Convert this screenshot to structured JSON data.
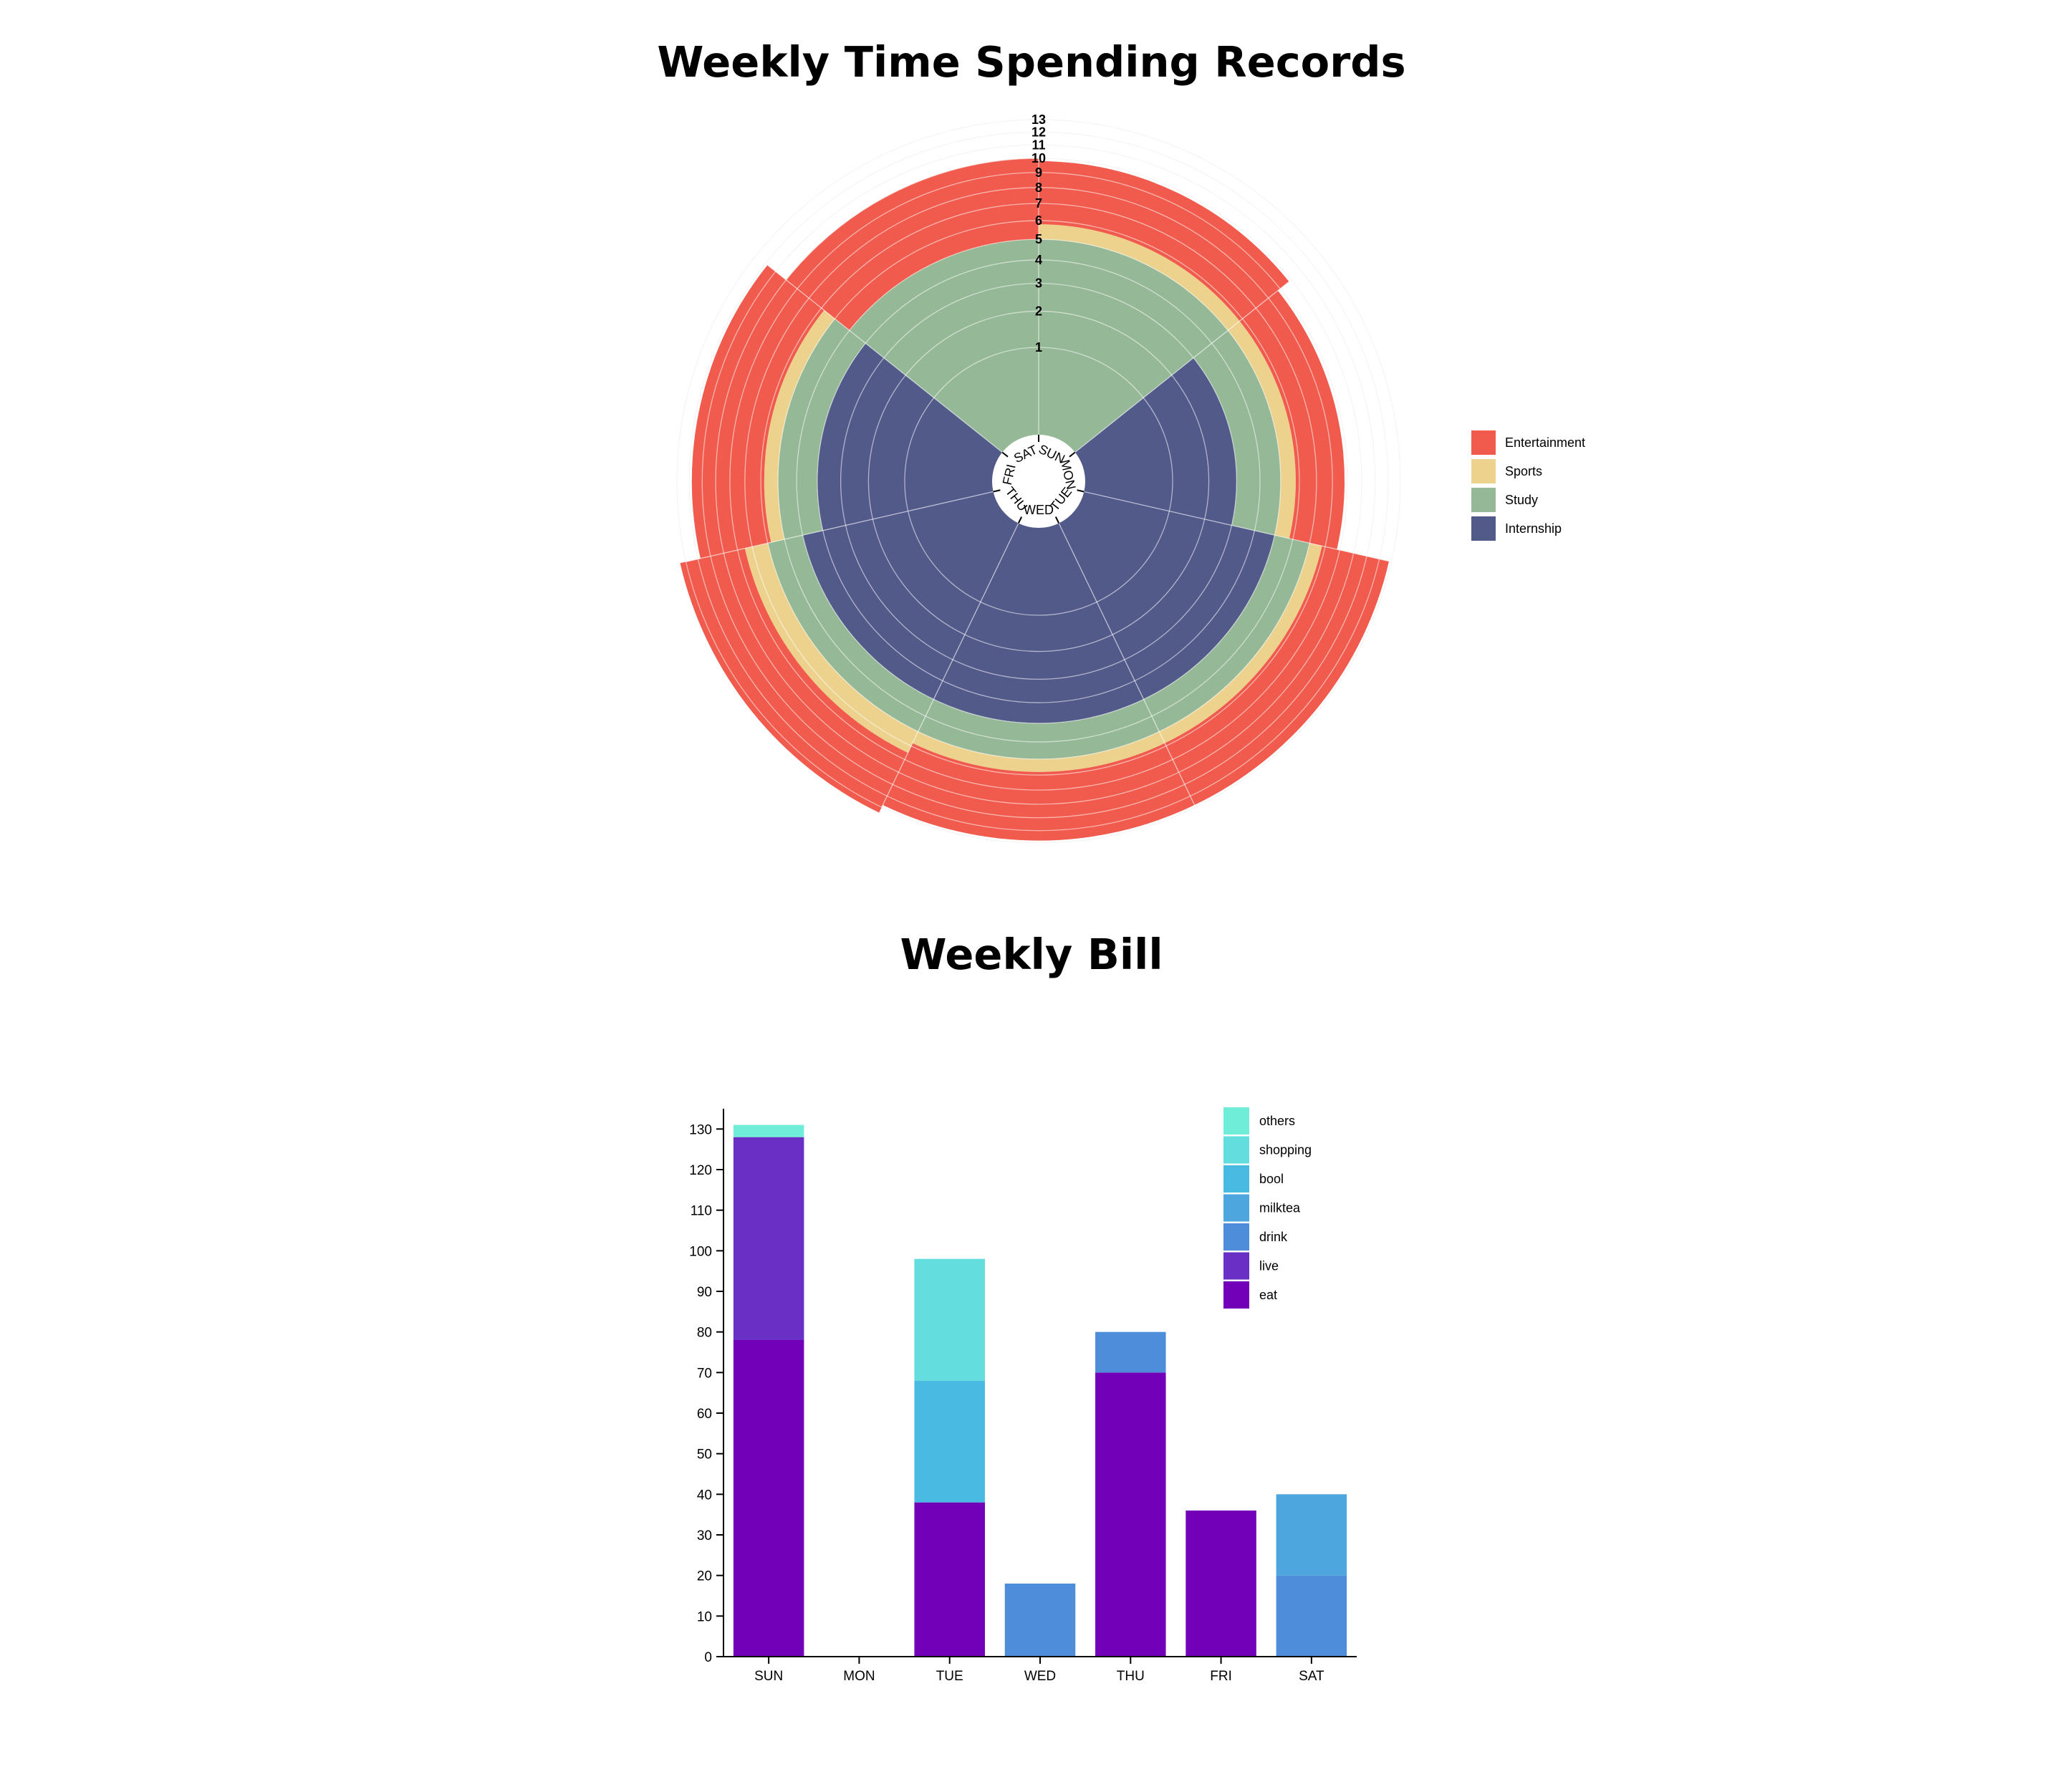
{
  "radial_chart": {
    "title": "Weekly Time Spending Records",
    "chart_data": {
      "type": "radial-stacked-bar",
      "categories": [
        "SUN",
        "MON",
        "TUE",
        "WED",
        "THU",
        "FRI",
        "SAT"
      ],
      "series": [
        {
          "name": "Internship",
          "color": "#525A8A",
          "values": [
            0,
            3,
            5,
            5,
            5,
            4,
            0
          ]
        },
        {
          "name": "Study",
          "color": "#95B896",
          "values": [
            5,
            2,
            2,
            2,
            2,
            2,
            5
          ]
        },
        {
          "name": "Sports",
          "color": "#EDD28E",
          "values": [
            0.8,
            0.8,
            0.8,
            0.8,
            1.5,
            0.8,
            0
          ]
        },
        {
          "name": "Entertainment",
          "color": "#F15B4D",
          "values": [
            4,
            3,
            5,
            5,
            5,
            5,
            5
          ]
        }
      ],
      "radial_ticks": [
        "1",
        "2",
        "3",
        "4",
        "5",
        "6",
        "7",
        "8",
        "9",
        "10",
        "11",
        "12",
        "13"
      ],
      "rlim": [
        0,
        13
      ],
      "legend_position": "right"
    }
  },
  "bill_chart": {
    "title": "Weekly Bill",
    "chart_data": {
      "type": "bar",
      "stacked": true,
      "categories": [
        "SUN",
        "MON",
        "TUE",
        "WED",
        "THU",
        "FRI",
        "SAT"
      ],
      "series": [
        {
          "name": "eat",
          "color": "#7300B9",
          "values": [
            78,
            0,
            38,
            0,
            70,
            36,
            0
          ]
        },
        {
          "name": "live",
          "color": "#6A2FC4",
          "values": [
            50,
            0,
            0,
            0,
            0,
            0,
            0
          ]
        },
        {
          "name": "drink",
          "color": "#4E8DDA",
          "values": [
            0,
            0,
            0,
            18,
            10,
            0,
            20
          ]
        },
        {
          "name": "milktea",
          "color": "#4DA7DE",
          "values": [
            0,
            0,
            0,
            0,
            0,
            0,
            20
          ]
        },
        {
          "name": "bool",
          "color": "#49BBE3",
          "values": [
            0,
            0,
            30,
            0,
            0,
            0,
            0
          ]
        },
        {
          "name": "shopping",
          "color": "#63DDDE",
          "values": [
            0,
            0,
            30,
            0,
            0,
            0,
            0
          ]
        },
        {
          "name": "others",
          "color": "#70EDD9",
          "values": [
            3,
            0,
            0,
            0,
            0,
            0,
            0
          ]
        }
      ],
      "y_ticks": [
        "0",
        "10",
        "20",
        "30",
        "40",
        "50",
        "60",
        "70",
        "80",
        "90",
        "100",
        "110",
        "120",
        "130"
      ],
      "ylim": [
        0,
        135
      ],
      "legend_order": [
        "others",
        "shopping",
        "bool",
        "milktea",
        "drink",
        "live",
        "eat"
      ],
      "legend_position": "top-right"
    }
  }
}
